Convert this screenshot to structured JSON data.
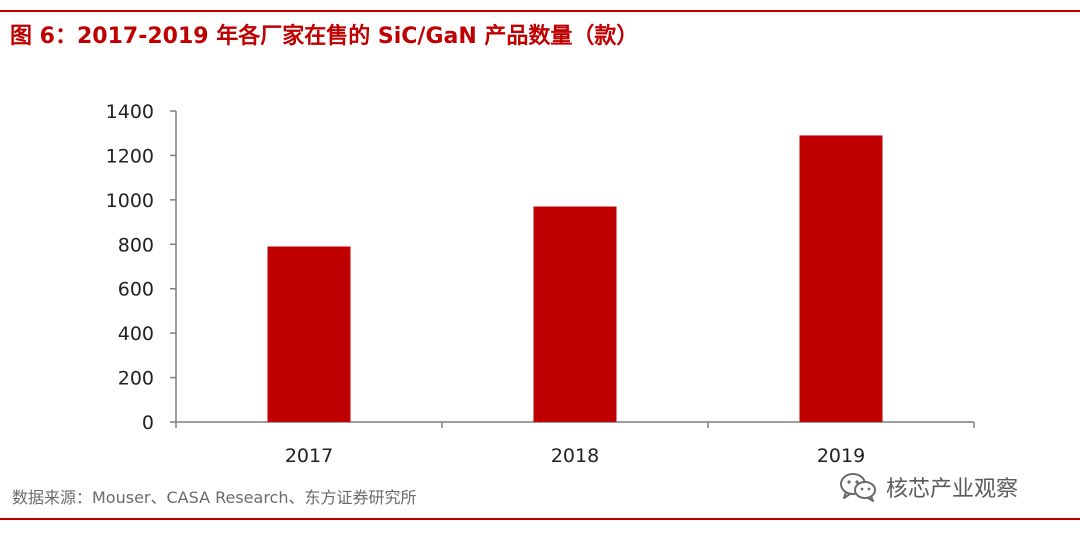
{
  "figure": {
    "title": "图 6：2017-2019 年各厂家在售的 SiC/GaN 产品数量（款）",
    "source": "数据来源：Mouser、CASA Research、东方证券研究所"
  },
  "watermark": {
    "text": "核芯产业观察",
    "icon": "wechat-icon"
  },
  "colors": {
    "accent": "#c00000",
    "bar": "#c00000",
    "axis": "#7f7f7f"
  },
  "chart_data": {
    "type": "bar",
    "categories": [
      "2017",
      "2018",
      "2019"
    ],
    "series": [
      {
        "values": [
          790,
          970,
          1290
        ]
      }
    ],
    "yticks": [
      0,
      200,
      400,
      600,
      800,
      1000,
      1200,
      1400
    ],
    "ylim": [
      0,
      1400
    ],
    "grid": false,
    "legend": "none",
    "title": "",
    "xlabel": "",
    "ylabel": ""
  }
}
